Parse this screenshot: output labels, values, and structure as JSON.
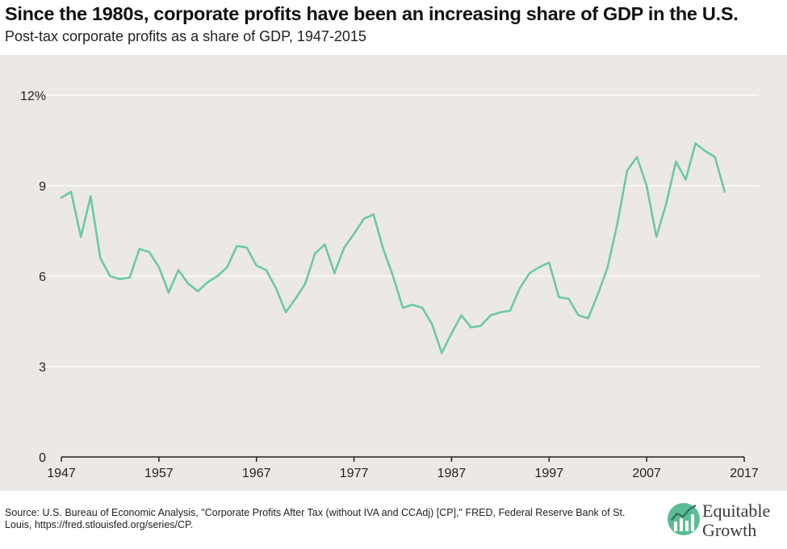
{
  "title": "Since the 1980s, corporate profits have been an increasing share of GDP in the U.S.",
  "subtitle": "Post-tax corporate profits as a share of GDP, 1947-2015",
  "source": "Source: U.S. Bureau of Economic Analysis, \"Corporate Profits After Tax (without IVA and CCAdj) [CP],\" FRED, Federal Reserve Bank of St. Louis, https://fred.stlouisfed.org/series/CP.",
  "brand": {
    "line1": "Equitable",
    "line2": "Growth",
    "icon": "equitable-growth-logo-icon"
  },
  "colors": {
    "line": "#6cc8a8",
    "plot_background": "#ece8e6",
    "grid": "#ffffff",
    "brand": "#5dbb96"
  },
  "chart_data": {
    "type": "line",
    "title": "Since the 1980s, corporate profits have been an increasing share of GDP in the U.S.",
    "subtitle": "Post-tax corporate profits as a share of GDP, 1947-2015",
    "xlabel": "",
    "ylabel": "",
    "xlim": [
      1947,
      2017
    ],
    "ylim": [
      0,
      12
    ],
    "x_ticks": [
      1947,
      1957,
      1967,
      1977,
      1987,
      1997,
      2007,
      2017
    ],
    "y_ticks": [
      0,
      3,
      6,
      9,
      12
    ],
    "y_tick_labels": [
      "0",
      "3",
      "6",
      "9",
      "12%"
    ],
    "grid": "horizontal",
    "legend": "none",
    "series": [
      {
        "x": [
          1947,
          1948,
          1949,
          1950,
          1951,
          1952,
          1953,
          1954,
          1955,
          1956,
          1957,
          1958,
          1959,
          1960,
          1961,
          1962,
          1963,
          1964,
          1965,
          1966,
          1967,
          1968,
          1969,
          1970,
          1971,
          1972,
          1973,
          1974,
          1975,
          1976,
          1977,
          1978,
          1979,
          1980,
          1981,
          1982,
          1983,
          1984,
          1985,
          1986,
          1987,
          1988,
          1989,
          1990,
          1991,
          1992,
          1993,
          1994,
          1995,
          1996,
          1997,
          1998,
          1999,
          2000,
          2001,
          2002,
          2003,
          2004,
          2005,
          2006,
          2007,
          2008,
          2009,
          2010,
          2011,
          2012,
          2013,
          2014,
          2015
        ],
        "values": [
          8.6,
          8.8,
          7.3,
          8.65,
          6.6,
          6.0,
          5.9,
          5.95,
          6.9,
          6.8,
          6.3,
          5.45,
          6.2,
          5.75,
          5.5,
          5.8,
          6.0,
          6.3,
          7.0,
          6.95,
          6.35,
          6.2,
          5.6,
          4.8,
          5.25,
          5.75,
          6.75,
          7.05,
          6.1,
          6.95,
          7.4,
          7.9,
          8.05,
          6.9,
          6.0,
          4.95,
          5.05,
          4.95,
          4.4,
          3.45,
          4.1,
          4.7,
          4.3,
          4.35,
          4.7,
          4.8,
          4.85,
          5.6,
          6.1,
          6.3,
          6.45,
          5.3,
          5.25,
          4.7,
          4.6,
          5.4,
          6.3,
          7.75,
          9.5,
          9.95,
          9.0,
          7.3,
          8.4,
          9.8,
          9.2,
          10.4,
          10.15,
          9.95,
          8.8
        ]
      }
    ]
  }
}
